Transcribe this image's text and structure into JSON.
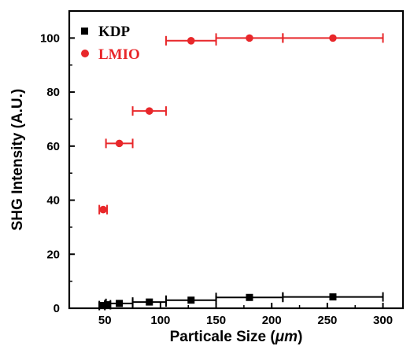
{
  "chart_data": {
    "type": "scatter",
    "title": "",
    "xlabel": "Particale Size (",
    "xlabel_unit": "μm",
    "xlabel_close": ")",
    "ylabel": "SHG Intensity (A.U.)",
    "xlim": [
      18,
      318
    ],
    "ylim": [
      0,
      110
    ],
    "xticks": [
      50,
      100,
      150,
      200,
      250,
      300
    ],
    "yticks": [
      0,
      20,
      40,
      60,
      80,
      100
    ],
    "grid": false,
    "legend_position": "top-left",
    "series": [
      {
        "name": "KDP",
        "marker": "square",
        "color": "#000000",
        "points": [
          {
            "x": 47.5,
            "y": 1.0,
            "xerr": 2.5
          },
          {
            "x": 52.5,
            "y": 1.3,
            "xerr": 2.5
          },
          {
            "x": 63,
            "y": 1.8,
            "xerr": 12
          },
          {
            "x": 90,
            "y": 2.3,
            "xerr": 15
          },
          {
            "x": 127.5,
            "y": 3.0,
            "xerr": 22.5
          },
          {
            "x": 180,
            "y": 4.0,
            "xerr": 30
          },
          {
            "x": 255,
            "y": 4.2,
            "xerr": 45
          }
        ]
      },
      {
        "name": "LMIO",
        "marker": "circle",
        "color": "#e8272a",
        "points": [
          {
            "x": 48.5,
            "y": 36.5,
            "xerr": 3.5
          },
          {
            "x": 63,
            "y": 61,
            "xerr": 12
          },
          {
            "x": 90,
            "y": 73,
            "xerr": 15
          },
          {
            "x": 127.5,
            "y": 99,
            "xerr": 22.5
          },
          {
            "x": 180,
            "y": 100,
            "xerr": 30
          },
          {
            "x": 255,
            "y": 100,
            "xerr": 45
          }
        ]
      }
    ]
  }
}
